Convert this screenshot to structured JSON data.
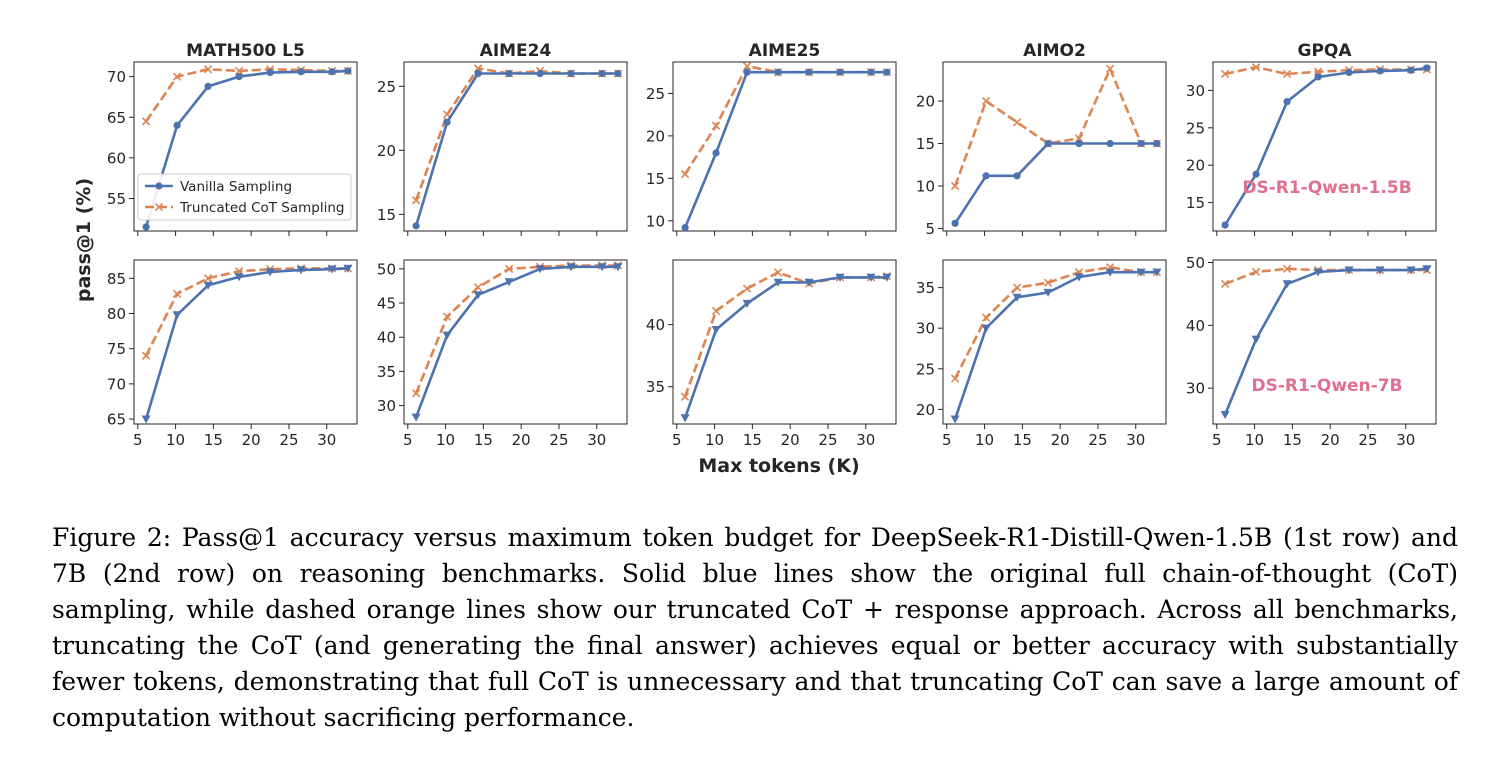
{
  "figure": {
    "ylabel": "pass@1 (%)",
    "xlabel": "Max tokens (K)",
    "legend": {
      "vanilla": "Vanilla Sampling",
      "truncated": "Truncated CoT Sampling"
    },
    "row_labels": [
      "DS-R1-Qwen-1.5B",
      "DS-R1-Qwen-7B"
    ],
    "colors": {
      "vanilla": "#4c72b0",
      "truncated": "#dd8452",
      "row_label": "#e07090"
    }
  },
  "chart_data": [
    {
      "type": "line",
      "title": "MATH500 L5",
      "row": 0,
      "col": 0,
      "xlim": [
        4.5,
        34
      ],
      "ylim": [
        51,
        71.8
      ],
      "yticks": [
        55,
        60,
        65,
        70
      ],
      "xticks": [
        5,
        10,
        15,
        20,
        25,
        30
      ],
      "show_xtick_labels": false,
      "legend": "lower-left",
      "x": [
        6.1,
        10.2,
        14.3,
        18.4,
        22.5,
        26.6,
        30.7,
        32.8
      ],
      "series": [
        {
          "name": "Vanilla Sampling",
          "marker": "circle",
          "values": [
            51.5,
            64,
            68.8,
            70,
            70.5,
            70.6,
            70.6,
            70.7
          ]
        },
        {
          "name": "Truncated CoT Sampling",
          "marker": "x",
          "values": [
            64.5,
            70,
            70.9,
            70.7,
            70.9,
            70.8,
            70.7,
            70.7
          ]
        }
      ]
    },
    {
      "type": "line",
      "title": "AIME24",
      "row": 0,
      "col": 1,
      "xlim": [
        4.5,
        34
      ],
      "ylim": [
        13.7,
        26.9
      ],
      "yticks": [
        15,
        20,
        25
      ],
      "xticks": [
        5,
        10,
        15,
        20,
        25,
        30
      ],
      "show_xtick_labels": false,
      "x": [
        6.1,
        10.2,
        14.3,
        18.4,
        22.5,
        26.6,
        30.7,
        32.8
      ],
      "series": [
        {
          "name": "Vanilla Sampling",
          "marker": "circle",
          "values": [
            14.1,
            22.2,
            26,
            26,
            26,
            26,
            26,
            26
          ]
        },
        {
          "name": "Truncated CoT Sampling",
          "marker": "x",
          "values": [
            16.1,
            22.8,
            26.4,
            26,
            26.2,
            26,
            26,
            26
          ]
        }
      ]
    },
    {
      "type": "line",
      "title": "AIME25",
      "row": 0,
      "col": 2,
      "xlim": [
        4.5,
        34
      ],
      "ylim": [
        8.8,
        28.7
      ],
      "yticks": [
        10,
        15,
        20,
        25
      ],
      "xticks": [
        5,
        10,
        15,
        20,
        25,
        30
      ],
      "show_xtick_labels": false,
      "x": [
        6.1,
        10.2,
        14.3,
        18.4,
        22.5,
        26.6,
        30.7,
        32.8
      ],
      "series": [
        {
          "name": "Vanilla Sampling",
          "marker": "circle",
          "values": [
            9.2,
            18,
            27.5,
            27.5,
            27.5,
            27.5,
            27.5,
            27.5
          ]
        },
        {
          "name": "Truncated CoT Sampling",
          "marker": "x",
          "values": [
            15.5,
            21.2,
            28.2,
            27.5,
            27.5,
            27.5,
            27.5,
            27.5
          ]
        }
      ]
    },
    {
      "type": "line",
      "title": "AIMO2",
      "row": 0,
      "col": 3,
      "xlim": [
        4.5,
        34
      ],
      "ylim": [
        4.7,
        24.6
      ],
      "yticks": [
        5,
        10,
        15,
        20
      ],
      "xticks": [
        5,
        10,
        15,
        20,
        25,
        30
      ],
      "show_xtick_labels": false,
      "x": [
        6.1,
        10.2,
        14.3,
        18.4,
        22.5,
        26.6,
        30.7,
        32.8
      ],
      "series": [
        {
          "name": "Vanilla Sampling",
          "marker": "circle",
          "values": [
            5.6,
            11.2,
            11.2,
            15,
            15,
            15,
            15,
            15
          ]
        },
        {
          "name": "Truncated CoT Sampling",
          "marker": "x",
          "values": [
            10,
            20,
            17.5,
            15,
            15.6,
            23.8,
            15,
            15
          ]
        }
      ]
    },
    {
      "type": "line",
      "title": "GPQA",
      "row": 0,
      "col": 4,
      "xlim": [
        4.5,
        34
      ],
      "ylim": [
        11.2,
        33.8
      ],
      "yticks": [
        15,
        20,
        25,
        30
      ],
      "xticks": [
        5,
        10,
        15,
        20,
        25,
        30
      ],
      "show_xtick_labels": false,
      "x": [
        6.1,
        10.2,
        14.3,
        18.4,
        22.5,
        26.6,
        30.7,
        32.8
      ],
      "series": [
        {
          "name": "Vanilla Sampling",
          "marker": "circle",
          "values": [
            12,
            18.8,
            28.5,
            31.8,
            32.4,
            32.6,
            32.7,
            33
          ]
        },
        {
          "name": "Truncated CoT Sampling",
          "marker": "x",
          "values": [
            32.2,
            33.1,
            32.2,
            32.5,
            32.7,
            32.8,
            32.8,
            32.8
          ]
        }
      ]
    },
    {
      "type": "line",
      "title": "",
      "row": 1,
      "col": 0,
      "xlim": [
        4.5,
        34
      ],
      "ylim": [
        64.3,
        87.6
      ],
      "yticks": [
        65,
        70,
        75,
        80,
        85
      ],
      "xticks": [
        5,
        10,
        15,
        20,
        25,
        30
      ],
      "show_xtick_labels": true,
      "x": [
        6.1,
        10.2,
        14.3,
        18.4,
        22.5,
        26.6,
        30.7,
        32.8
      ],
      "series": [
        {
          "name": "Vanilla Sampling",
          "marker": "triangle-down",
          "values": [
            65,
            79.8,
            84,
            85.2,
            85.9,
            86.2,
            86.3,
            86.4
          ]
        },
        {
          "name": "Truncated CoT Sampling",
          "marker": "x",
          "values": [
            74,
            82.8,
            85,
            86,
            86.3,
            86.4,
            86.4,
            86.4
          ]
        }
      ]
    },
    {
      "type": "line",
      "title": "",
      "row": 1,
      "col": 1,
      "xlim": [
        4.5,
        34
      ],
      "ylim": [
        27.3,
        51.3
      ],
      "yticks": [
        30,
        35,
        40,
        45,
        50
      ],
      "xticks": [
        5,
        10,
        15,
        20,
        25,
        30
      ],
      "show_xtick_labels": true,
      "x": [
        6.1,
        10.2,
        14.3,
        18.4,
        22.5,
        26.6,
        30.7,
        32.8
      ],
      "series": [
        {
          "name": "Vanilla Sampling",
          "marker": "triangle-down",
          "values": [
            28.3,
            40.3,
            46.2,
            48.1,
            50,
            50.3,
            50.3,
            50.3
          ]
        },
        {
          "name": "Truncated CoT Sampling",
          "marker": "x",
          "values": [
            31.8,
            43,
            47.3,
            50,
            50.3,
            50.5,
            50.5,
            50.5
          ]
        }
      ]
    },
    {
      "type": "line",
      "title": "",
      "row": 1,
      "col": 2,
      "xlim": [
        4.5,
        34
      ],
      "ylim": [
        32,
        45.2
      ],
      "yticks": [
        35,
        40
      ],
      "xticks": [
        5,
        10,
        15,
        20,
        25,
        30
      ],
      "show_xtick_labels": true,
      "x": [
        6.1,
        10.2,
        14.3,
        18.4,
        22.5,
        26.6,
        30.7,
        32.8
      ],
      "series": [
        {
          "name": "Vanilla Sampling",
          "marker": "triangle-down",
          "values": [
            32.5,
            39.6,
            41.7,
            43.4,
            43.4,
            43.8,
            43.8,
            43.8
          ]
        },
        {
          "name": "Truncated CoT Sampling",
          "marker": "x",
          "values": [
            34.2,
            41.1,
            42.9,
            44.2,
            43.3,
            43.8,
            43.8,
            43.9
          ]
        }
      ]
    },
    {
      "type": "line",
      "title": "",
      "row": 1,
      "col": 3,
      "xlim": [
        4.5,
        34
      ],
      "ylim": [
        18.2,
        38.4
      ],
      "yticks": [
        20,
        25,
        30,
        35
      ],
      "xticks": [
        5,
        10,
        15,
        20,
        25,
        30
      ],
      "show_xtick_labels": true,
      "x": [
        6.1,
        10.2,
        14.3,
        18.4,
        22.5,
        26.6,
        30.7,
        32.8
      ],
      "series": [
        {
          "name": "Vanilla Sampling",
          "marker": "triangle-down",
          "values": [
            18.8,
            30,
            33.8,
            34.4,
            36.3,
            36.9,
            36.9,
            36.9
          ]
        },
        {
          "name": "Truncated CoT Sampling",
          "marker": "x",
          "values": [
            23.8,
            31.3,
            35,
            35.6,
            36.9,
            37.5,
            36.9,
            36.9
          ]
        }
      ]
    },
    {
      "type": "line",
      "title": "",
      "row": 1,
      "col": 4,
      "xlim": [
        4.5,
        34
      ],
      "ylim": [
        24.3,
        50.4
      ],
      "yticks": [
        30,
        40,
        50
      ],
      "xticks": [
        5,
        10,
        15,
        20,
        25,
        30
      ],
      "show_xtick_labels": true,
      "x": [
        6.1,
        10.2,
        14.3,
        18.4,
        22.5,
        26.6,
        30.7,
        32.8
      ],
      "series": [
        {
          "name": "Vanilla Sampling",
          "marker": "triangle-down",
          "values": [
            25.8,
            37.8,
            46.6,
            48.5,
            48.8,
            48.8,
            48.8,
            49
          ]
        },
        {
          "name": "Truncated CoT Sampling",
          "marker": "x",
          "values": [
            46.6,
            48.5,
            49,
            48.8,
            48.8,
            48.8,
            48.8,
            48.8
          ]
        }
      ]
    }
  ],
  "caption": "Figure 2: Pass@1 accuracy versus maximum token budget for DeepSeek-R1-Distill-Qwen-1.5B (1st row) and 7B (2nd row) on reasoning benchmarks. Solid blue lines show the original full chain-of-thought (CoT) sampling, while dashed orange lines show our truncated CoT + response approach. Across all benchmarks, truncating the CoT (and generating the final answer) achieves equal or better accuracy with substantially fewer tokens, demonstrating that full CoT is unnecessary and that truncating CoT can save a large amount of computation without sacrificing performance."
}
